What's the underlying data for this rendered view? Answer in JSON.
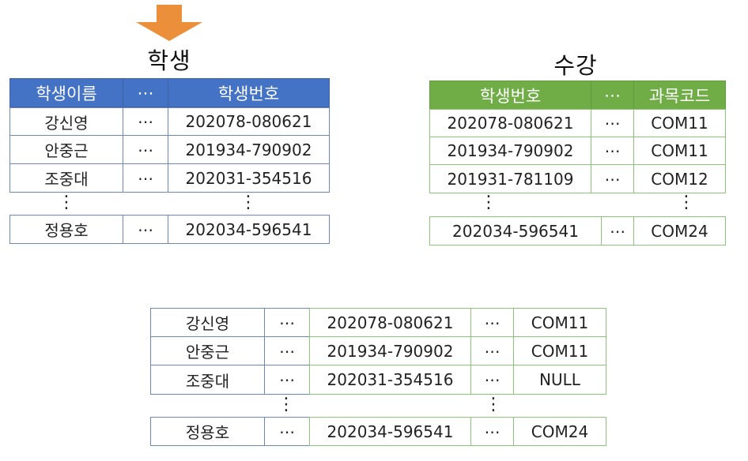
{
  "student_table": {
    "title": "학생",
    "headers": [
      "학생이름",
      "⋯",
      "학생번호"
    ],
    "rows": [
      [
        "강신영",
        "⋯",
        "202078-080621"
      ],
      [
        "안중근",
        "⋯",
        "201934-790902"
      ],
      [
        "조중대",
        "⋯",
        "202031-354516"
      ],
      [
        "정용호",
        "⋯",
        "202034-596541"
      ]
    ]
  },
  "enroll_table": {
    "title": "수강",
    "headers": [
      "학생번호",
      "⋯",
      "과목코드"
    ],
    "rows": [
      [
        "202078-080621",
        "⋯",
        "COM11"
      ],
      [
        "201934-790902",
        "⋯",
        "COM11"
      ],
      [
        "201931-781109",
        "⋯",
        "COM12"
      ],
      [
        "202034-596541",
        "⋯",
        "COM24"
      ]
    ]
  },
  "join_table": {
    "rows": [
      [
        "강신영",
        "⋯",
        "202078-080621",
        "⋯",
        "COM11"
      ],
      [
        "안중근",
        "⋯",
        "201934-790902",
        "⋯",
        "COM11"
      ],
      [
        "조중대",
        "⋯",
        "202031-354516",
        "⋯",
        "NULL"
      ],
      [
        "정용호",
        "⋯",
        "202034-596541",
        "⋯",
        "COM24"
      ]
    ]
  },
  "gap_marker": "⋮",
  "colors": {
    "student_header": "#4472c4",
    "enroll_header": "#70ad47",
    "student_border": "#6d86c2",
    "enroll_border": "#8ec47a",
    "arrow": "#ec8f3a"
  }
}
